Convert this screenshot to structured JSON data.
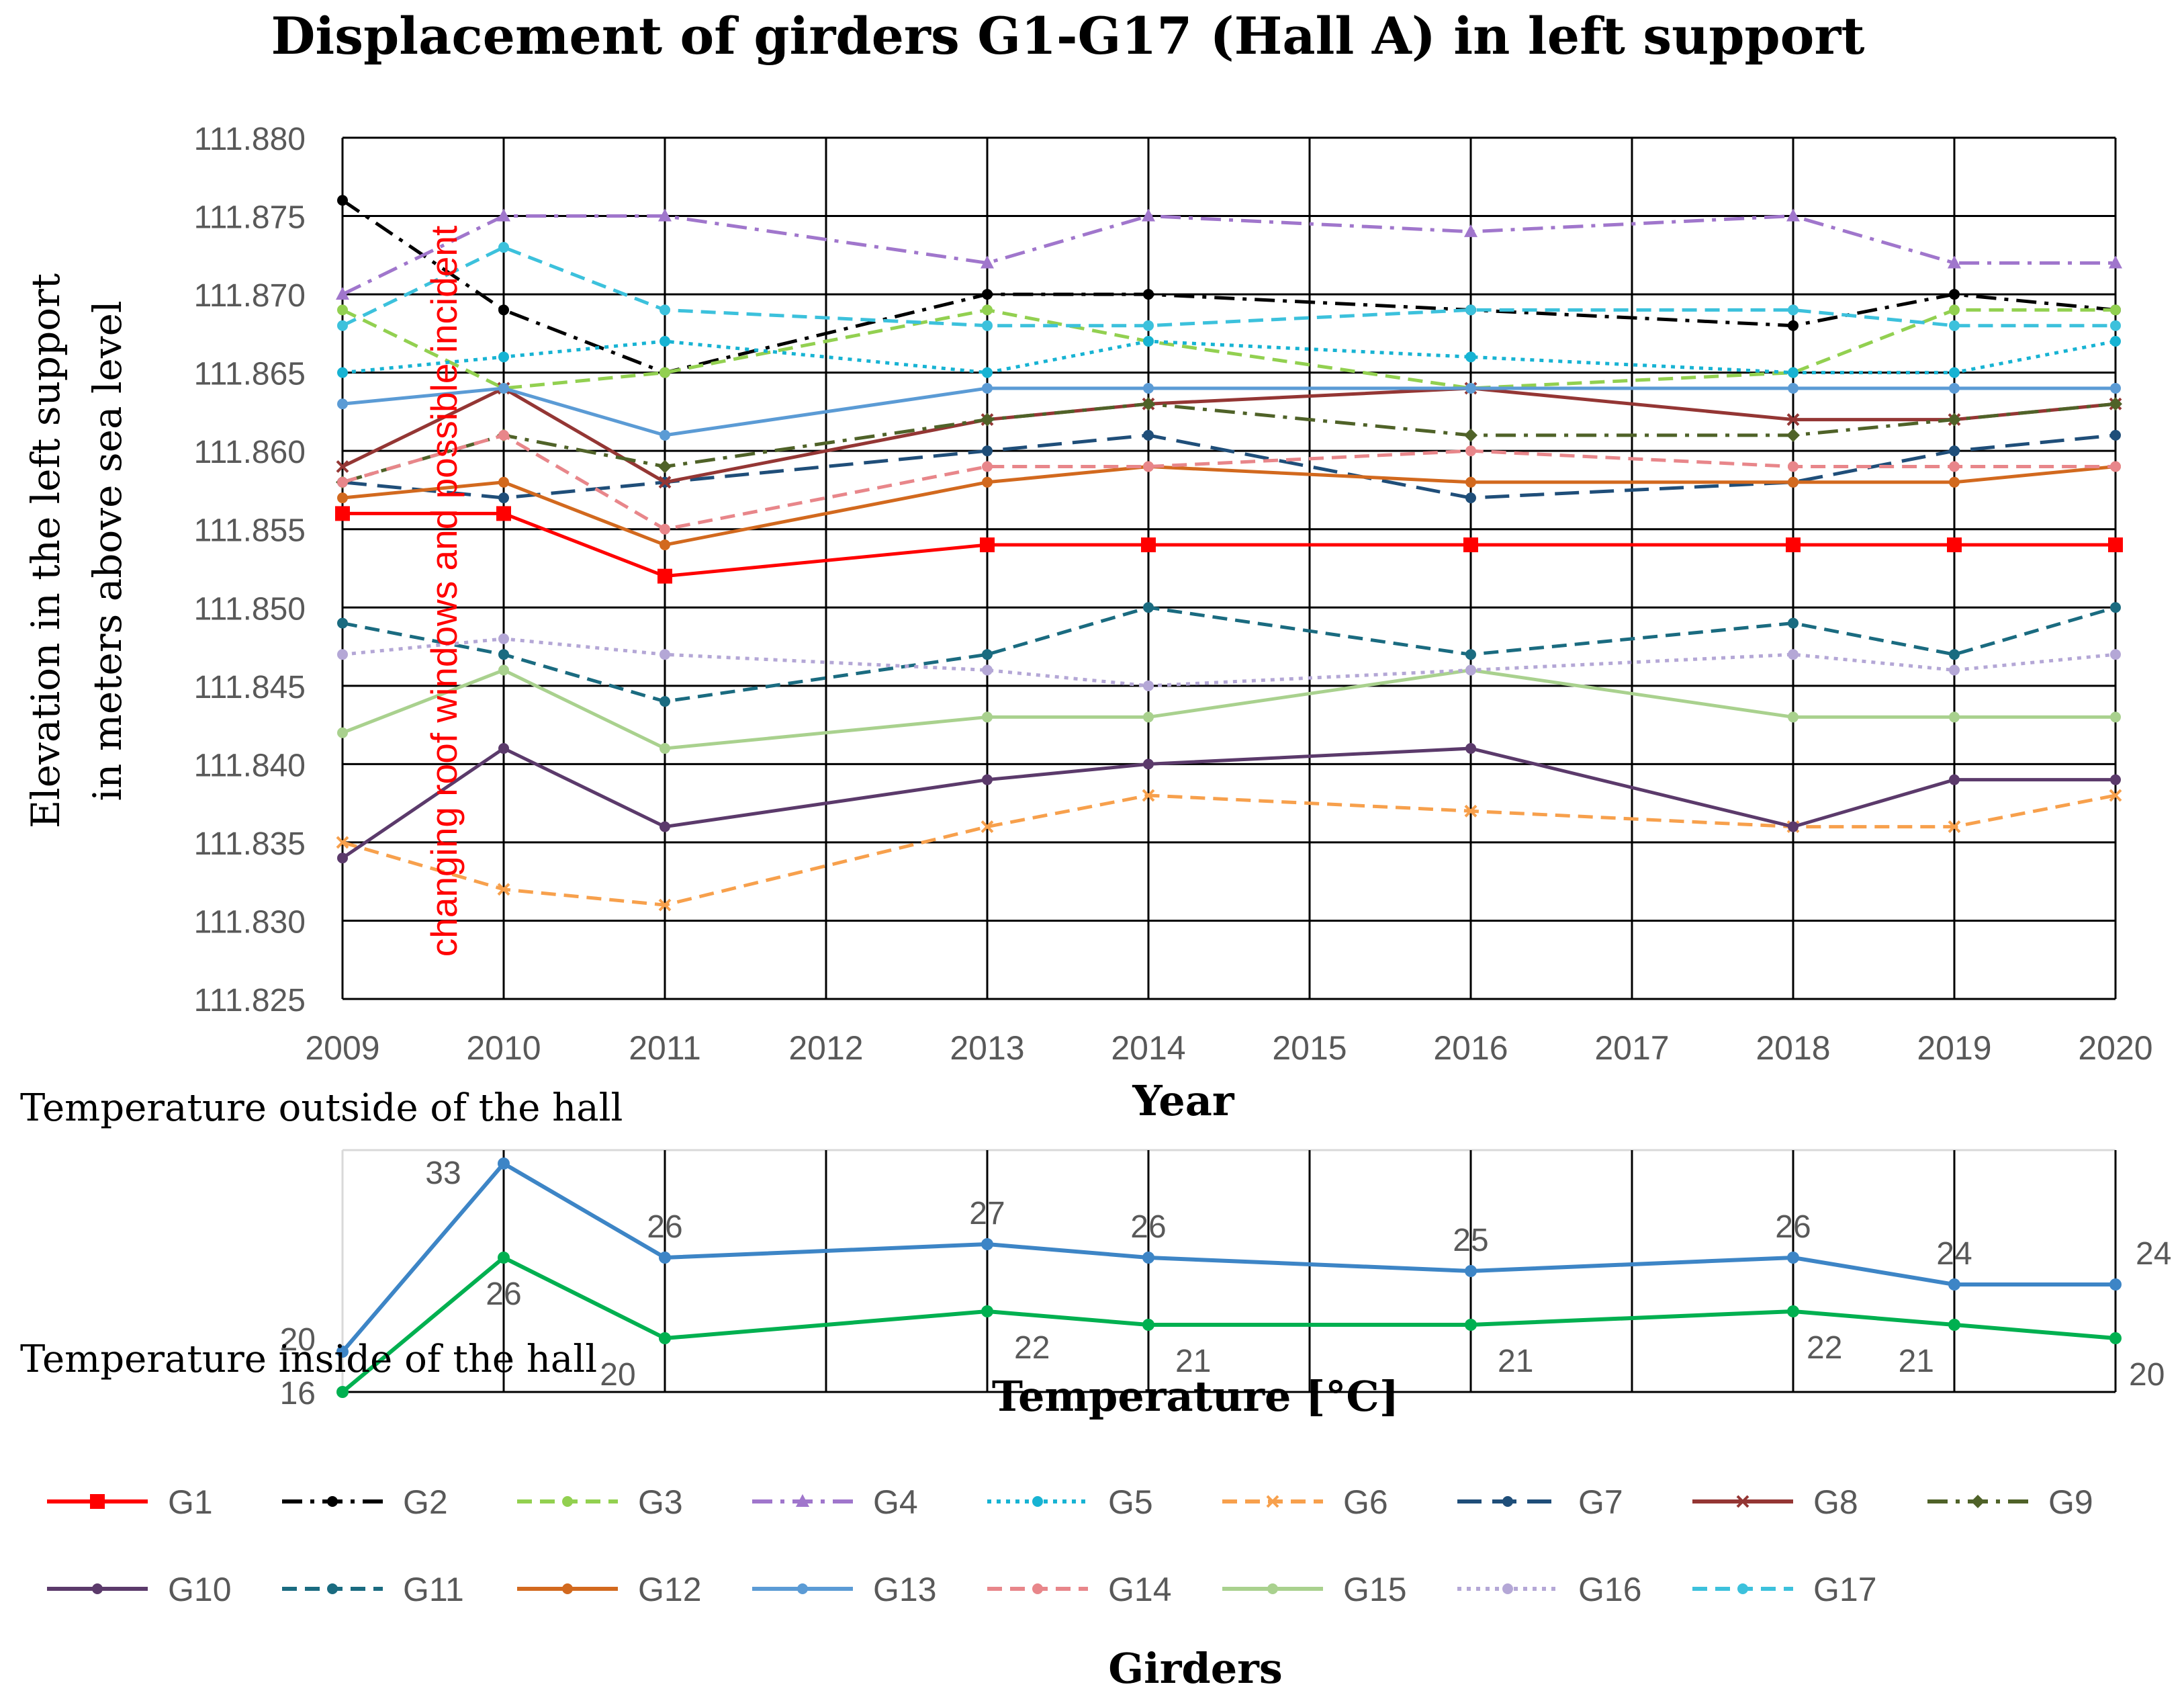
{
  "chart_data": [
    {
      "type": "line",
      "title": "Displacement of girders G1-G17 (Hall A) in left support",
      "xlabel": "Year",
      "ylabel_lines": [
        "Elevation in the left support",
        "in meters above sea level"
      ],
      "categories": [
        "2009",
        "2010",
        "2011",
        "2012",
        "2013",
        "2014",
        "2015",
        "2016",
        "2017",
        "2018",
        "2019",
        "2020"
      ],
      "ylim": [
        111.825,
        111.88
      ],
      "ytick_step": 0.005,
      "ytick_labels": [
        "111.880",
        "111.875",
        "111.870",
        "111.865",
        "111.860",
        "111.855",
        "111.850",
        "111.845",
        "111.840",
        "111.835",
        "111.830",
        "111.825"
      ],
      "annotation": "changing roof windows and possible incident",
      "annotation_color": "#ff0000",
      "legend_title": "Girders",
      "legend_position": "bottom",
      "series": [
        {
          "name": "G1",
          "color": "#ff0000",
          "dash": "solid",
          "marker": "square",
          "values": [
            111.856,
            111.856,
            111.852,
            null,
            111.854,
            111.854,
            null,
            111.854,
            null,
            111.854,
            111.854,
            111.854
          ]
        },
        {
          "name": "G2",
          "color": "#000000",
          "dash": "dashdot",
          "marker": "circle",
          "values": [
            111.876,
            111.869,
            111.865,
            null,
            111.87,
            111.87,
            null,
            111.869,
            null,
            111.868,
            111.87,
            111.869
          ]
        },
        {
          "name": "G3",
          "color": "#92d050",
          "dash": "dash",
          "marker": "circle",
          "values": [
            111.869,
            111.864,
            111.865,
            null,
            111.869,
            111.867,
            null,
            111.864,
            null,
            111.865,
            111.869,
            111.869
          ]
        },
        {
          "name": "G4",
          "color": "#a076cc",
          "dash": "dashdot",
          "marker": "triangle",
          "values": [
            111.87,
            111.875,
            111.875,
            null,
            111.872,
            111.875,
            null,
            111.874,
            null,
            111.875,
            111.872,
            111.872
          ]
        },
        {
          "name": "G5",
          "color": "#17b3d3",
          "dash": "dot",
          "marker": "circle",
          "values": [
            111.865,
            111.866,
            111.867,
            null,
            111.865,
            111.867,
            null,
            111.866,
            null,
            111.865,
            111.865,
            111.867
          ]
        },
        {
          "name": "G6",
          "color": "#f7a04c",
          "dash": "dash",
          "marker": "x",
          "values": [
            111.835,
            111.832,
            111.831,
            null,
            111.836,
            111.838,
            null,
            111.837,
            null,
            111.836,
            111.836,
            111.838
          ]
        },
        {
          "name": "G7",
          "color": "#1f4e79",
          "dash": "longdash",
          "marker": "circle",
          "values": [
            111.858,
            111.857,
            111.858,
            null,
            111.86,
            111.861,
            null,
            111.857,
            null,
            111.858,
            111.86,
            111.861
          ]
        },
        {
          "name": "G8",
          "color": "#943634",
          "dash": "solid",
          "marker": "x",
          "values": [
            111.859,
            111.864,
            111.858,
            null,
            111.862,
            111.863,
            null,
            111.864,
            null,
            111.862,
            111.862,
            111.863
          ]
        },
        {
          "name": "G9",
          "color": "#4f6228",
          "dash": "dashdot",
          "marker": "diamond",
          "values": [
            111.858,
            111.861,
            111.859,
            null,
            111.862,
            111.863,
            null,
            111.861,
            null,
            111.861,
            111.862,
            111.863
          ]
        },
        {
          "name": "G10",
          "color": "#5b3a6b",
          "dash": "solid",
          "marker": "circle",
          "values": [
            111.834,
            111.841,
            111.836,
            null,
            111.839,
            111.84,
            null,
            111.841,
            null,
            111.836,
            111.839,
            111.839
          ]
        },
        {
          "name": "G11",
          "color": "#1a6b80",
          "dash": "dash",
          "marker": "circle",
          "values": [
            111.849,
            111.847,
            111.844,
            null,
            111.847,
            111.85,
            null,
            111.847,
            null,
            111.849,
            111.847,
            111.85
          ]
        },
        {
          "name": "G12",
          "color": "#d2691e",
          "dash": "solid",
          "marker": "circle",
          "values": [
            111.857,
            111.858,
            111.854,
            null,
            111.858,
            111.859,
            null,
            111.858,
            null,
            111.858,
            111.858,
            111.859
          ]
        },
        {
          "name": "G13",
          "color": "#5b9bd5",
          "dash": "solid",
          "marker": "circle",
          "values": [
            111.863,
            111.864,
            111.861,
            null,
            111.864,
            111.864,
            null,
            111.864,
            null,
            111.864,
            111.864,
            111.864
          ]
        },
        {
          "name": "G14",
          "color": "#e8868a",
          "dash": "dash",
          "marker": "circle",
          "values": [
            111.858,
            111.861,
            111.855,
            null,
            111.859,
            111.859,
            null,
            111.86,
            null,
            111.859,
            111.859,
            111.859
          ]
        },
        {
          "name": "G15",
          "color": "#a9d18e",
          "dash": "solid",
          "marker": "circle",
          "values": [
            111.842,
            111.846,
            111.841,
            null,
            111.843,
            111.843,
            null,
            111.846,
            null,
            111.843,
            111.843,
            111.843
          ]
        },
        {
          "name": "G16",
          "color": "#b4a7d6",
          "dash": "dot",
          "marker": "circle",
          "values": [
            111.847,
            111.848,
            111.847,
            null,
            111.846,
            111.845,
            null,
            111.846,
            null,
            111.847,
            111.846,
            111.847
          ]
        },
        {
          "name": "G17",
          "color": "#3cc1dc",
          "dash": "dash",
          "marker": "circle",
          "values": [
            111.868,
            111.873,
            111.869,
            null,
            111.868,
            111.868,
            null,
            111.869,
            null,
            111.869,
            111.868,
            111.868
          ]
        }
      ]
    },
    {
      "type": "line",
      "title": "Temperature [°C]",
      "ylim": [
        16,
        34
      ],
      "ytick_labels": [
        "20",
        "16"
      ],
      "ytick_values": [
        20,
        16
      ],
      "categories": [
        "2009",
        "2010",
        "2011",
        "2012",
        "2013",
        "2014",
        "2015",
        "2016",
        "2017",
        "2018",
        "2019",
        "2020"
      ],
      "series": [
        {
          "name": "Temperature outside of the hall",
          "color": "#3d85c6",
          "values": [
            19,
            33,
            26,
            null,
            27,
            26,
            null,
            25,
            null,
            26,
            24,
            24
          ],
          "labels": [
            "",
            "33",
            "26",
            "",
            "27",
            "26",
            "",
            "25",
            "",
            "26",
            "24",
            "24"
          ]
        },
        {
          "name": "Temperature inside of the hall",
          "color": "#00b050",
          "values": [
            16,
            26,
            20,
            null,
            22,
            21,
            null,
            21,
            null,
            22,
            21,
            20
          ],
          "labels": [
            "",
            "26",
            "20",
            "",
            "22",
            "21",
            "",
            "21",
            "",
            "22",
            "21",
            "20"
          ]
        }
      ]
    }
  ]
}
